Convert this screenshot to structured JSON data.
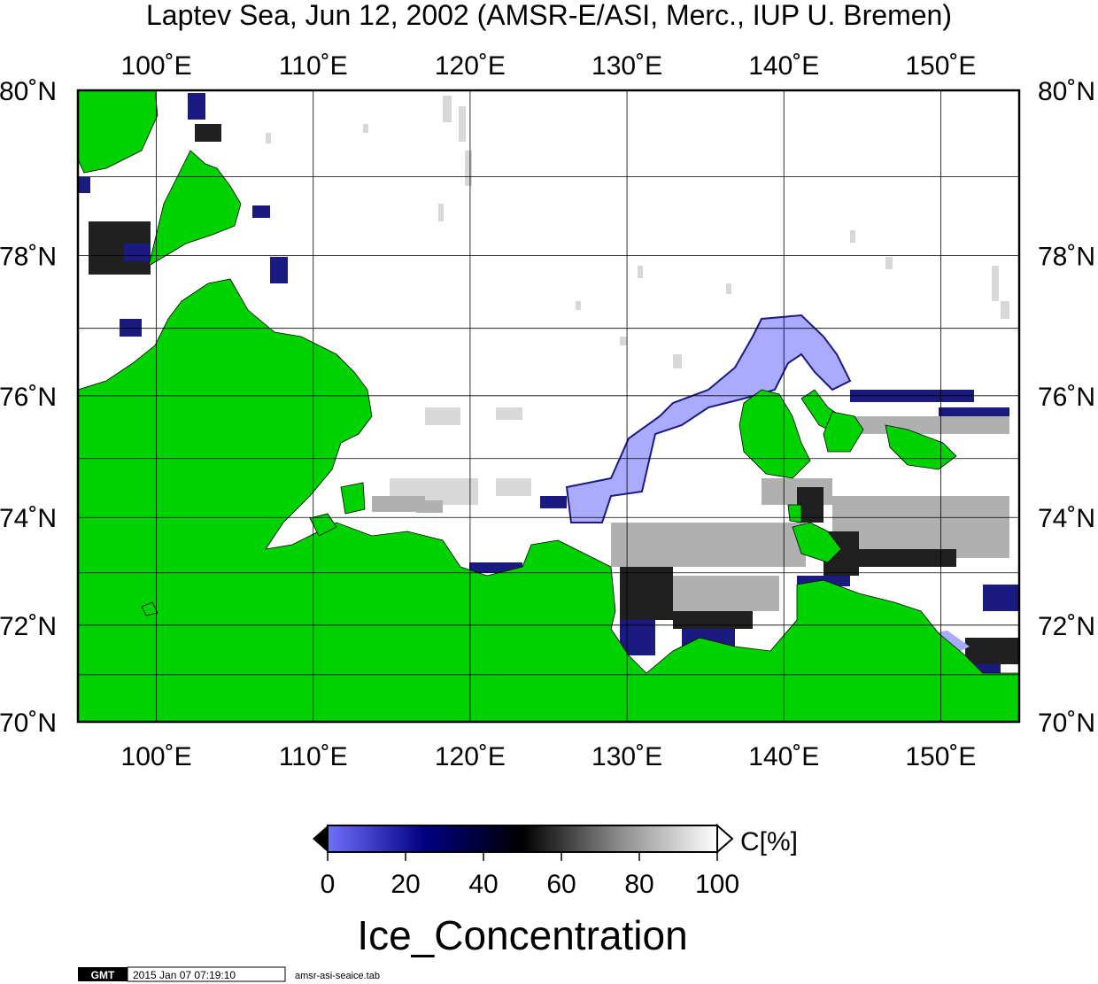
{
  "map": {
    "title": "Laptev Sea, Jun 12, 2002 (AMSR-E/ASI, Merc., IUP U. Bremen)",
    "projection": "Mercator",
    "lon_range": [
      95,
      155
    ],
    "lat_range": [
      70,
      80
    ],
    "lon_ticks": [
      {
        "value": 100,
        "label": "100˚E"
      },
      {
        "value": 110,
        "label": "110˚E"
      },
      {
        "value": 120,
        "label": "120˚E"
      },
      {
        "value": 130,
        "label": "130˚E"
      },
      {
        "value": 140,
        "label": "140˚E"
      },
      {
        "value": 150,
        "label": "150˚E"
      }
    ],
    "lat_ticks": [
      {
        "value": 80,
        "label": "80˚N"
      },
      {
        "value": 78,
        "label": "78˚N"
      },
      {
        "value": 76,
        "label": "76˚N"
      },
      {
        "value": 74,
        "label": "74˚N"
      },
      {
        "value": 72,
        "label": "72˚N"
      },
      {
        "value": 70,
        "label": "70˚N"
      }
    ],
    "colors": {
      "land": "#00d200",
      "ocean": "#ffffff",
      "grid": "#000000",
      "low_concentration": "#aaaaff",
      "mid_concentration": "#1a1a70",
      "high_concentration": "#000000"
    }
  },
  "colorbar": {
    "unit": "C[%]",
    "ticks": [
      "0",
      "20",
      "40",
      "60",
      "80",
      "100"
    ],
    "stops": [
      {
        "value": 0,
        "color": "#7070ff"
      },
      {
        "value": 25,
        "color": "#000080"
      },
      {
        "value": 50,
        "color": "#000000"
      },
      {
        "value": 75,
        "color": "#8c8c8c"
      },
      {
        "value": 100,
        "color": "#ffffff"
      }
    ],
    "caption": "Ice_Concentration"
  },
  "footer": {
    "logo": "GMT",
    "timestamp": "2015 Jan 07 07:19:10",
    "filename": "amsr-asi-seaice.tab"
  }
}
